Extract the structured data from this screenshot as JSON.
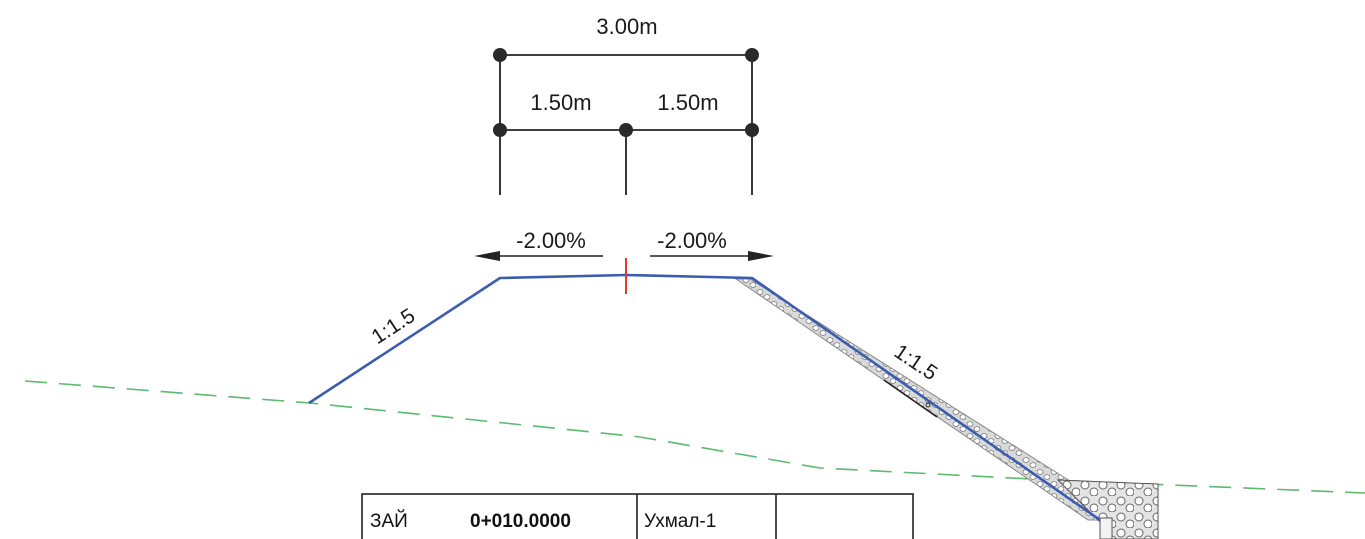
{
  "dimensions": {
    "total_width": "3.00m",
    "left_half": "1.50m",
    "right_half": "1.50m"
  },
  "crossfall": {
    "left": "-2.00%",
    "right": "-2.00%"
  },
  "side_slopes": {
    "left": "1:1.5",
    "right": "1:1.5"
  },
  "title_block": {
    "label": "ЗАЙ",
    "station": "0+010.0000",
    "name": "Ухмал-1",
    "extra": ""
  },
  "colors": {
    "road_profile": "#3b5cb0",
    "ground_line": "#5dba6e",
    "centerline": "#e23b2a",
    "dimension": "#222222",
    "riprap": "#9a9a9a"
  }
}
